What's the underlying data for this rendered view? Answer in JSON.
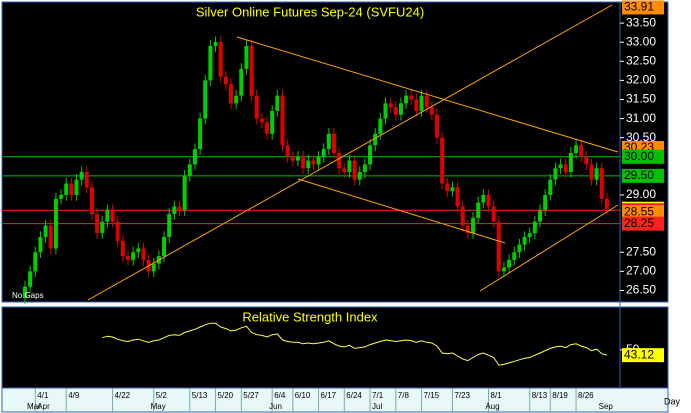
{
  "chart_data": {
    "type": "candlestick",
    "title": "Silver Online Futures Sep-24 (SVFU24)",
    "annotation": "No Gaps",
    "x_unit": "Day",
    "categories": [
      null,
      null,
      "4/1",
      null,
      null,
      null,
      null,
      null,
      "4/9",
      null,
      null,
      null,
      null,
      null,
      null,
      null,
      null,
      "4/22",
      null,
      null,
      null,
      null,
      null,
      null,
      null,
      "5/2",
      null,
      null,
      null,
      null,
      null,
      null,
      "5/13",
      null,
      null,
      null,
      null,
      "5/20",
      null,
      null,
      null,
      null,
      "5/27",
      null,
      null,
      null,
      null,
      null,
      "6/4",
      null,
      null,
      null,
      "6/10",
      null,
      null,
      null,
      null,
      "6/17",
      null,
      null,
      null,
      null,
      "6/24",
      null,
      null,
      null,
      null,
      "7/1",
      null,
      null,
      null,
      null,
      "7/8",
      null,
      null,
      null,
      null,
      "7/15",
      null,
      null,
      null,
      null,
      null,
      "7/23",
      null,
      null,
      null,
      null,
      null,
      null,
      "8/1",
      null,
      null,
      null,
      null,
      null,
      null,
      null,
      "8/13",
      null,
      null,
      null,
      "8/19",
      null,
      null,
      null,
      null,
      "8/26",
      null,
      null,
      null,
      null,
      null,
      null
    ],
    "month_labels": [
      "Mar",
      null,
      "Apr",
      null,
      null,
      null,
      null,
      null,
      null,
      null,
      null,
      null,
      null,
      null,
      null,
      null,
      null,
      null,
      null,
      null,
      null,
      null,
      null,
      null,
      "May",
      null,
      null,
      null,
      null,
      null,
      null,
      null,
      null,
      null,
      null,
      null,
      null,
      null,
      null,
      null,
      null,
      null,
      null,
      null,
      null,
      null,
      null,
      "Jun",
      null,
      null,
      null,
      null,
      null,
      null,
      null,
      null,
      null,
      null,
      null,
      null,
      null,
      null,
      null,
      null,
      null,
      null,
      null,
      "Jul",
      null,
      null,
      null,
      null,
      null,
      null,
      null,
      null,
      null,
      null,
      null,
      null,
      null,
      null,
      null,
      null,
      null,
      null,
      null,
      null,
      null,
      "Aug",
      null,
      null,
      null,
      null,
      null,
      null,
      null,
      null,
      null,
      null,
      null,
      null,
      null,
      null,
      null,
      null,
      null,
      null,
      null,
      null,
      null,
      "Sep",
      null
    ],
    "open": [
      26.3,
      26.6,
      27.0,
      27.5,
      27.9,
      28.2,
      27.6,
      28.9,
      29.0,
      29.3,
      29.0,
      29.4,
      29.6,
      29.2,
      28.5,
      28.0,
      28.3,
      28.6,
      28.3,
      27.8,
      27.4,
      27.3,
      27.5,
      27.6,
      27.3,
      27.0,
      27.2,
      27.4,
      27.9,
      28.5,
      28.7,
      28.6,
      29.5,
      29.8,
      30.2,
      31.0,
      32.0,
      32.9,
      33.0,
      32.1,
      31.9,
      31.4,
      31.6,
      32.3,
      32.9,
      31.6,
      31.0,
      30.9,
      30.6,
      31.2,
      31.6,
      30.3,
      30.0,
      29.9,
      30.0,
      29.7,
      29.9,
      29.8,
      30.0,
      30.2,
      30.6,
      30.1,
      29.7,
      29.6,
      29.9,
      29.4,
      29.6,
      29.8,
      30.3,
      30.6,
      31.0,
      31.4,
      31.3,
      31.1,
      31.4,
      31.6,
      31.5,
      31.2,
      31.6,
      31.3,
      31.1,
      30.5,
      29.3,
      29.1,
      29.2,
      28.7,
      28.2,
      28.0,
      28.4,
      28.8,
      29.0,
      28.7,
      28.3,
      27.0,
      27.1,
      27.3,
      27.5,
      27.7,
      27.9,
      28.0,
      28.3,
      28.6,
      29.0,
      29.4,
      29.7,
      29.8,
      29.6,
      30.1,
      30.3,
      30.0,
      29.8,
      29.4,
      29.7,
      28.9
    ],
    "high": [
      26.75,
      27.15,
      27.65,
      28.05,
      28.35,
      28.35,
      29.05,
      29.15,
      29.45,
      29.45,
      29.55,
      29.75,
      29.75,
      29.35,
      28.65,
      28.45,
      28.75,
      28.75,
      28.45,
      27.95,
      27.55,
      27.65,
      27.75,
      27.75,
      27.45,
      27.35,
      27.55,
      28.05,
      28.65,
      28.85,
      28.85,
      29.65,
      29.95,
      30.35,
      31.15,
      32.15,
      33.05,
      33.15,
      33.15,
      32.25,
      32.05,
      31.75,
      32.45,
      33.05,
      33.05,
      31.75,
      31.15,
      31.05,
      31.35,
      31.75,
      31.75,
      30.45,
      30.15,
      30.15,
      30.15,
      30.05,
      30.05,
      30.15,
      30.35,
      30.75,
      30.75,
      30.25,
      29.85,
      30.05,
      30.05,
      29.75,
      29.95,
      30.45,
      30.75,
      31.15,
      31.55,
      31.55,
      31.45,
      31.55,
      31.75,
      31.75,
      31.65,
      31.75,
      31.75,
      31.45,
      31.25,
      30.65,
      29.45,
      29.35,
      29.35,
      28.85,
      28.35,
      28.55,
      28.95,
      29.15,
      29.15,
      28.85,
      28.45,
      27.25,
      27.45,
      27.65,
      27.85,
      28.05,
      28.15,
      28.45,
      28.75,
      29.15,
      29.55,
      29.85,
      29.95,
      29.95,
      30.25,
      30.45,
      30.45,
      30.15,
      29.95,
      29.85,
      29.85,
      29.05
    ],
    "low": [
      26.15,
      26.45,
      26.85,
      27.35,
      27.75,
      27.45,
      27.45,
      28.75,
      28.85,
      28.85,
      28.85,
      29.25,
      29.05,
      28.35,
      27.85,
      27.85,
      28.15,
      28.15,
      27.65,
      27.25,
      27.15,
      27.15,
      27.35,
      27.15,
      26.85,
      26.85,
      27.05,
      27.25,
      27.75,
      28.35,
      28.45,
      28.45,
      29.35,
      29.65,
      30.05,
      30.85,
      31.85,
      32.75,
      31.95,
      31.75,
      31.25,
      31.25,
      31.45,
      32.15,
      31.45,
      30.85,
      30.75,
      30.45,
      30.45,
      31.05,
      30.15,
      29.85,
      29.75,
      29.75,
      29.55,
      29.55,
      29.65,
      29.65,
      29.85,
      30.05,
      29.95,
      29.55,
      29.45,
      29.45,
      29.25,
      29.25,
      29.45,
      29.65,
      30.15,
      30.45,
      30.85,
      31.15,
      30.95,
      30.95,
      31.25,
      31.35,
      31.05,
      31.05,
      31.15,
      30.95,
      30.35,
      29.15,
      28.95,
      28.95,
      28.55,
      28.05,
      27.85,
      27.85,
      28.25,
      28.65,
      28.55,
      28.15,
      26.85,
      26.85,
      26.95,
      27.15,
      27.35,
      27.55,
      27.75,
      27.85,
      28.15,
      28.45,
      28.85,
      29.25,
      29.55,
      29.45,
      29.45,
      29.95,
      29.85,
      29.65,
      29.25,
      29.25,
      28.75,
      28.49
    ],
    "close": [
      26.6,
      27.0,
      27.5,
      27.9,
      28.2,
      27.6,
      28.9,
      29.0,
      29.3,
      29.0,
      29.4,
      29.6,
      29.2,
      28.5,
      28.0,
      28.3,
      28.6,
      28.3,
      27.8,
      27.4,
      27.3,
      27.5,
      27.6,
      27.3,
      27.0,
      27.2,
      27.4,
      27.9,
      28.5,
      28.7,
      28.6,
      29.5,
      29.8,
      30.2,
      31.0,
      32.0,
      32.9,
      33.0,
      32.1,
      31.9,
      31.4,
      31.6,
      32.3,
      32.9,
      31.6,
      31.0,
      30.9,
      30.6,
      31.2,
      31.6,
      30.3,
      30.0,
      29.9,
      30.0,
      29.7,
      29.9,
      29.8,
      30.0,
      30.2,
      30.6,
      30.1,
      29.7,
      29.6,
      29.9,
      29.4,
      29.6,
      29.8,
      30.3,
      30.6,
      31.0,
      31.4,
      31.3,
      31.1,
      31.4,
      31.6,
      31.5,
      31.2,
      31.6,
      31.3,
      31.1,
      30.5,
      29.3,
      29.1,
      29.2,
      28.7,
      28.2,
      28.0,
      28.4,
      28.8,
      29.0,
      28.7,
      28.3,
      27.0,
      27.1,
      27.3,
      27.5,
      27.7,
      27.9,
      28.0,
      28.3,
      28.6,
      29.0,
      29.4,
      29.7,
      29.8,
      29.6,
      30.1,
      30.3,
      30.0,
      29.8,
      29.4,
      29.7,
      28.9,
      28.64
    ],
    "up_color": "#00d000",
    "down_color": "#e00000",
    "ylim": [
      26.25,
      34.0
    ],
    "yticks": [
      {
        "value": 26.5,
        "label": "26.50"
      },
      {
        "value": 27,
        "label": "27.00"
      },
      {
        "value": 27.5,
        "label": "27.50"
      },
      {
        "value": 29,
        "label": "29.00"
      },
      {
        "value": 30.5,
        "label": "30.50"
      },
      {
        "value": 31,
        "label": "31.00"
      },
      {
        "value": 31.5,
        "label": "31.50"
      },
      {
        "value": 32,
        "label": "32.00"
      },
      {
        "value": 32.5,
        "label": "32.50"
      },
      {
        "value": 33,
        "label": "33.00"
      },
      {
        "value": 33.5,
        "label": "33.50"
      }
    ],
    "price_tags": [
      {
        "value": 33.91,
        "label": "33.91",
        "color": "#ff8c00",
        "line": false
      },
      {
        "value": 30.23,
        "label": "30.23",
        "color": "#ff8c00",
        "line": false
      },
      {
        "value": 30,
        "label": "30.00",
        "color": "#00c000",
        "line": true
      },
      {
        "value": 29.5,
        "label": "29.50",
        "color": "#00c000",
        "line": true
      },
      {
        "value": 28.64,
        "label": "28.64",
        "color": "#ffff00",
        "line": false
      },
      {
        "value": 28.6,
        "label": "28.60",
        "color": "#ff2020",
        "line": true
      },
      {
        "value": 28.55,
        "label": "28.55",
        "color": "#ff8c00",
        "line": false
      },
      {
        "value": 28.25,
        "label": "28.25",
        "color": "#ff2020",
        "line": true
      }
    ],
    "indicator": {
      "title": "Relative Strength Index",
      "color": "#ffff40",
      "ylim": [
        0,
        105
      ],
      "yticks": [
        50
      ],
      "tag": {
        "value": 43.12,
        "label": "43.12",
        "color": "#ffff00"
      },
      "values": [
        null,
        null,
        null,
        null,
        null,
        null,
        null,
        null,
        null,
        null,
        null,
        null,
        null,
        null,
        null,
        66,
        68,
        67,
        64,
        62,
        61,
        63,
        64,
        62,
        60,
        62,
        63,
        66,
        69,
        70,
        69,
        73,
        75,
        77,
        80,
        83,
        85,
        85,
        80,
        78,
        75,
        76,
        79,
        81,
        73,
        70,
        69,
        67,
        70,
        71,
        63,
        61,
        60,
        60,
        58,
        59,
        58,
        59,
        60,
        62,
        58,
        55,
        54,
        56,
        52,
        53,
        54,
        57,
        59,
        61,
        63,
        62,
        61,
        62,
        63,
        62,
        60,
        62,
        60,
        59,
        55,
        46,
        45,
        46,
        42,
        38,
        36,
        40,
        44,
        46,
        43,
        40,
        30,
        31,
        33,
        35,
        37,
        39,
        40,
        43,
        46,
        49,
        52,
        54,
        55,
        53,
        57,
        58,
        55,
        53,
        49,
        51,
        45,
        43.12
      ]
    }
  }
}
